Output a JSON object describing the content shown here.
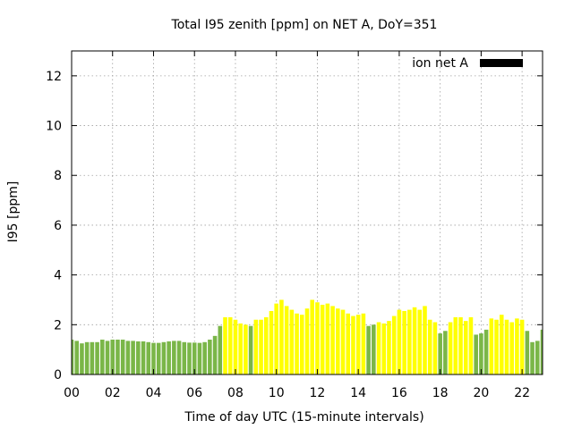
{
  "chart_data": {
    "type": "bar",
    "title": "Total I95 zenith [ppm] on NET A, DoY=351",
    "xlabel": "Time of day UTC (15-minute intervals)",
    "ylabel": "I95 [ppm]",
    "ylim": [
      0,
      13
    ],
    "yticks": [
      0,
      2,
      4,
      6,
      8,
      10,
      12
    ],
    "xlim_hours": [
      0,
      23
    ],
    "xtick_hours": [
      0,
      2,
      4,
      6,
      8,
      10,
      12,
      14,
      16,
      18,
      20,
      22
    ],
    "xtick_labels": [
      "00",
      "02",
      "04",
      "06",
      "08",
      "10",
      "12",
      "14",
      "16",
      "18",
      "20",
      "22"
    ],
    "grid": true,
    "legend": {
      "position": "top-right",
      "entries": [
        {
          "label": "ion net A",
          "color": "#000000"
        }
      ]
    },
    "interval_minutes": 15,
    "colors": {
      "green": "#7ab648",
      "yellow": "#ffff00"
    },
    "values": [
      1.4,
      1.35,
      1.25,
      1.3,
      1.3,
      1.3,
      1.4,
      1.35,
      1.4,
      1.4,
      1.4,
      1.35,
      1.35,
      1.33,
      1.33,
      1.3,
      1.27,
      1.27,
      1.3,
      1.33,
      1.35,
      1.35,
      1.3,
      1.28,
      1.28,
      1.27,
      1.3,
      1.4,
      1.55,
      1.95,
      2.3,
      2.3,
      2.2,
      2.05,
      2.0,
      1.95,
      2.2,
      2.2,
      2.3,
      2.55,
      2.85,
      3.0,
      2.75,
      2.6,
      2.45,
      2.4,
      2.65,
      3.0,
      2.9,
      2.8,
      2.85,
      2.75,
      2.65,
      2.6,
      2.45,
      2.35,
      2.4,
      2.45,
      1.95,
      2.0,
      2.1,
      2.05,
      2.15,
      2.35,
      2.6,
      2.55,
      2.6,
      2.7,
      2.6,
      2.75,
      2.2,
      2.1,
      1.65,
      1.75,
      2.1,
      2.3,
      2.3,
      2.15,
      2.3,
      1.6,
      1.65,
      1.8,
      2.25,
      2.2,
      2.4,
      2.2,
      2.1,
      2.25,
      2.2,
      1.75,
      1.3,
      1.35,
      1.8
    ],
    "bar_colors": [
      "green",
      "green",
      "green",
      "green",
      "green",
      "green",
      "green",
      "green",
      "green",
      "green",
      "green",
      "green",
      "green",
      "green",
      "green",
      "green",
      "green",
      "green",
      "green",
      "green",
      "green",
      "green",
      "green",
      "green",
      "green",
      "green",
      "green",
      "green",
      "green",
      "green",
      "yellow",
      "yellow",
      "yellow",
      "yellow",
      "yellow",
      "green",
      "yellow",
      "yellow",
      "yellow",
      "yellow",
      "yellow",
      "yellow",
      "yellow",
      "yellow",
      "yellow",
      "yellow",
      "yellow",
      "yellow",
      "yellow",
      "yellow",
      "yellow",
      "yellow",
      "yellow",
      "yellow",
      "yellow",
      "yellow",
      "yellow",
      "yellow",
      "green",
      "green",
      "yellow",
      "yellow",
      "yellow",
      "yellow",
      "yellow",
      "yellow",
      "yellow",
      "yellow",
      "yellow",
      "yellow",
      "yellow",
      "yellow",
      "green",
      "green",
      "yellow",
      "yellow",
      "yellow",
      "yellow",
      "yellow",
      "green",
      "green",
      "green",
      "yellow",
      "yellow",
      "yellow",
      "yellow",
      "yellow",
      "yellow",
      "yellow",
      "green",
      "green",
      "green",
      "green"
    ]
  }
}
